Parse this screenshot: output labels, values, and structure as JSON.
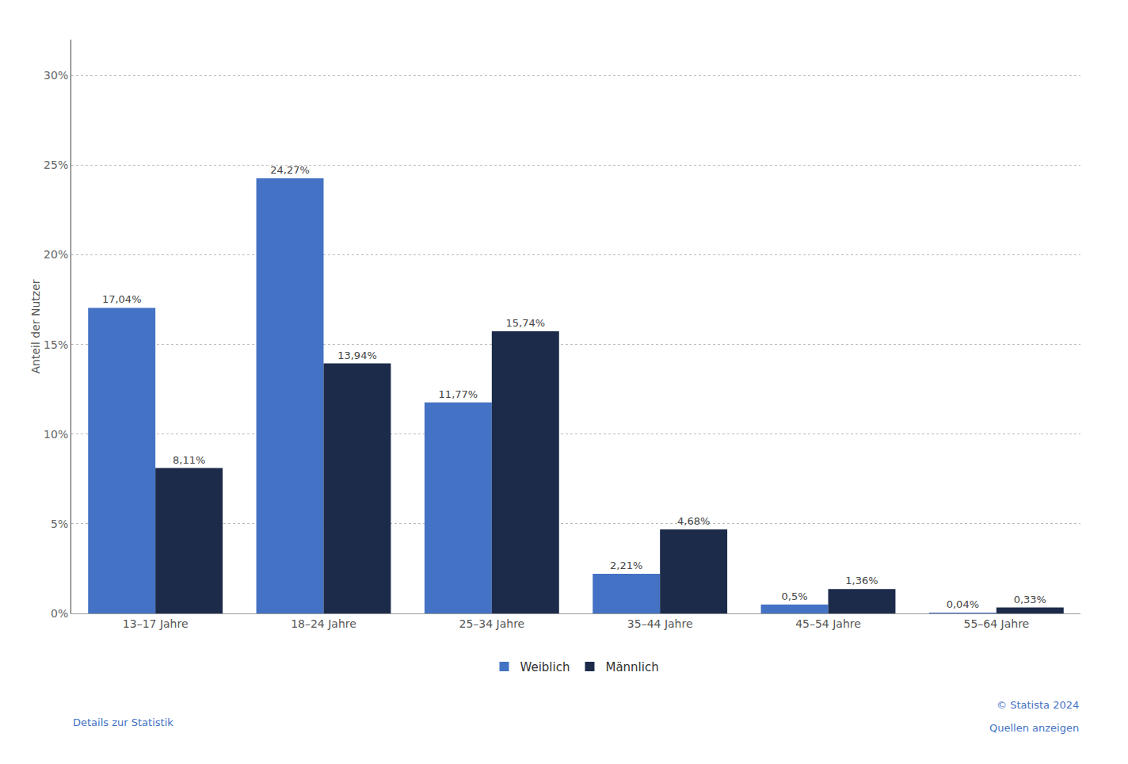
{
  "chart_data": {
    "type": "bar",
    "categories": [
      "13–17 Jahre",
      "18–24 Jahre",
      "25–34 Jahre",
      "35–44 Jahre",
      "45–54 Jahre",
      "55–64 Jahre"
    ],
    "series": [
      {
        "name": "Weiblich",
        "color": "#4472C4",
        "values": [
          17.04,
          24.27,
          11.77,
          2.21,
          0.5,
          0.04
        ],
        "value_labels": [
          "17,04%",
          "24,27%",
          "11,77%",
          "2,21%",
          "0,5%",
          "0,04%"
        ]
      },
      {
        "name": "Männlich",
        "color": "#1C2B4A",
        "values": [
          8.11,
          13.94,
          15.74,
          4.68,
          1.36,
          0.33
        ],
        "value_labels": [
          "8,11%",
          "13,94%",
          "15,74%",
          "4,68%",
          "1,36%",
          "0,33%"
        ]
      }
    ],
    "ylabel": "Anteil der Nutzer",
    "ylim": [
      0,
      32
    ],
    "yticks": [
      {
        "value": 0,
        "label": "0%"
      },
      {
        "value": 5,
        "label": "5%"
      },
      {
        "value": 10,
        "label": "10%"
      },
      {
        "value": 15,
        "label": "15%"
      },
      {
        "value": 20,
        "label": "20%"
      },
      {
        "value": 25,
        "label": "25%"
      },
      {
        "value": 30,
        "label": "30%"
      }
    ],
    "grid": true,
    "legend": "bottom",
    "data_labels": true,
    "annotations": [
      "Details zur Statistik",
      "© Statista 2024",
      "Quellen anzeigen"
    ]
  }
}
